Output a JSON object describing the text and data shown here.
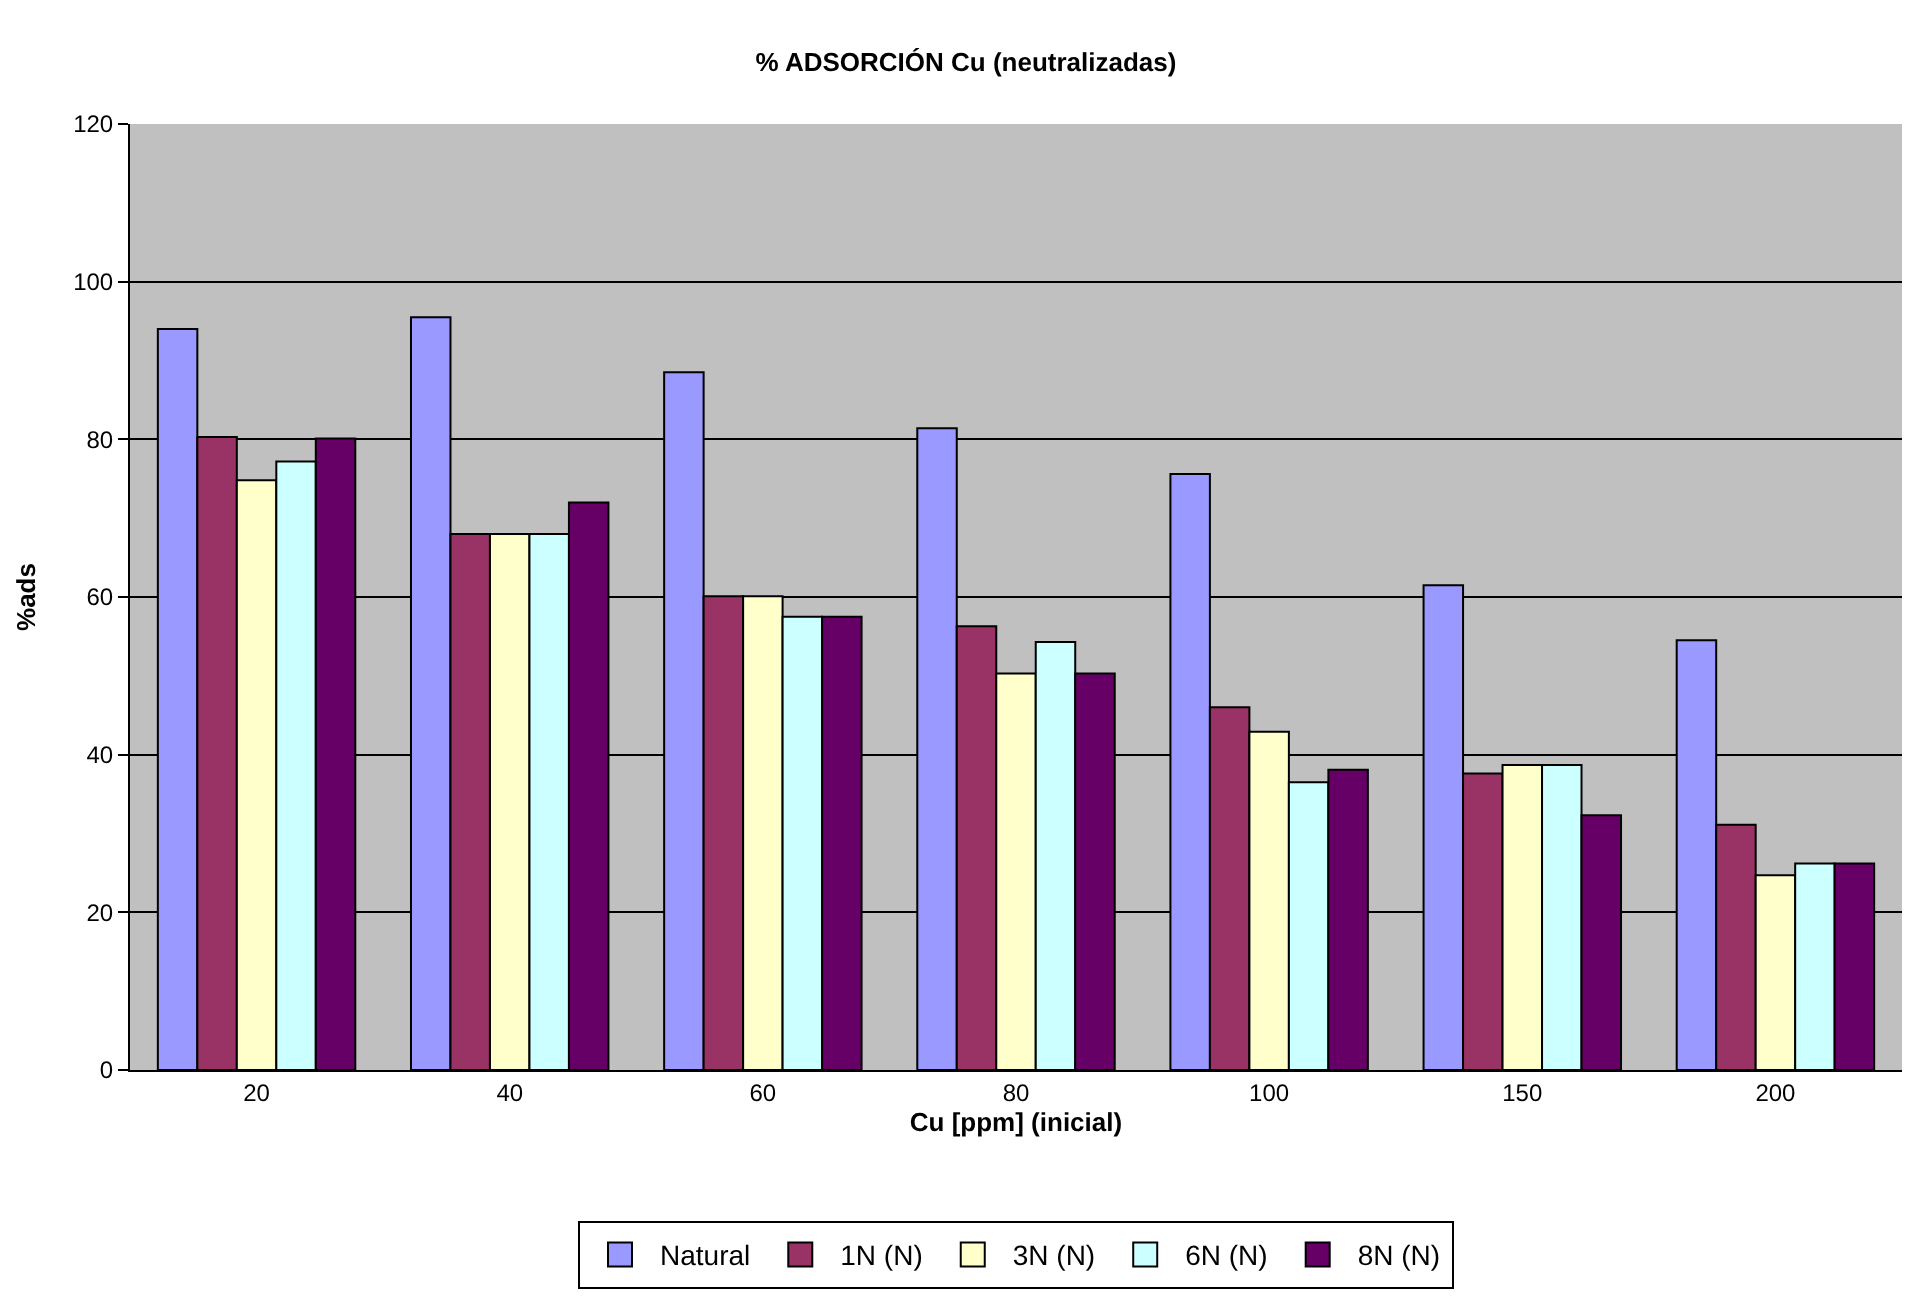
{
  "chart_data": {
    "type": "bar",
    "title": "% ADSORCIÓN Cu (neutralizadas)",
    "xlabel": "Cu [ppm] (inicial)",
    "ylabel": "%ads",
    "categories": [
      "20",
      "40",
      "60",
      "80",
      "100",
      "150",
      "200"
    ],
    "series": [
      {
        "name": "Natural",
        "color": "#9999ff",
        "values": [
          94.0,
          95.5,
          88.5,
          81.4,
          75.6,
          61.5,
          54.5
        ]
      },
      {
        "name": "1N (N)",
        "color": "#993366",
        "values": [
          80.3,
          68.0,
          60.1,
          56.3,
          46.0,
          37.6,
          31.1
        ]
      },
      {
        "name": "3N (N)",
        "color": "#ffffcc",
        "values": [
          74.8,
          68.0,
          60.1,
          50.3,
          42.9,
          38.7,
          24.7
        ]
      },
      {
        "name": "6N (N)",
        "color": "#ccffff",
        "values": [
          77.2,
          68.0,
          57.5,
          54.3,
          36.5,
          38.7,
          26.2
        ]
      },
      {
        "name": "8N (N)",
        "color": "#660066",
        "values": [
          80.1,
          72.0,
          57.5,
          50.3,
          38.1,
          32.3,
          26.2
        ]
      }
    ],
    "ylim": [
      0,
      120
    ],
    "yticks": [
      0,
      20,
      40,
      60,
      80,
      100,
      120
    ],
    "grid": "y",
    "legend": "bottom"
  }
}
